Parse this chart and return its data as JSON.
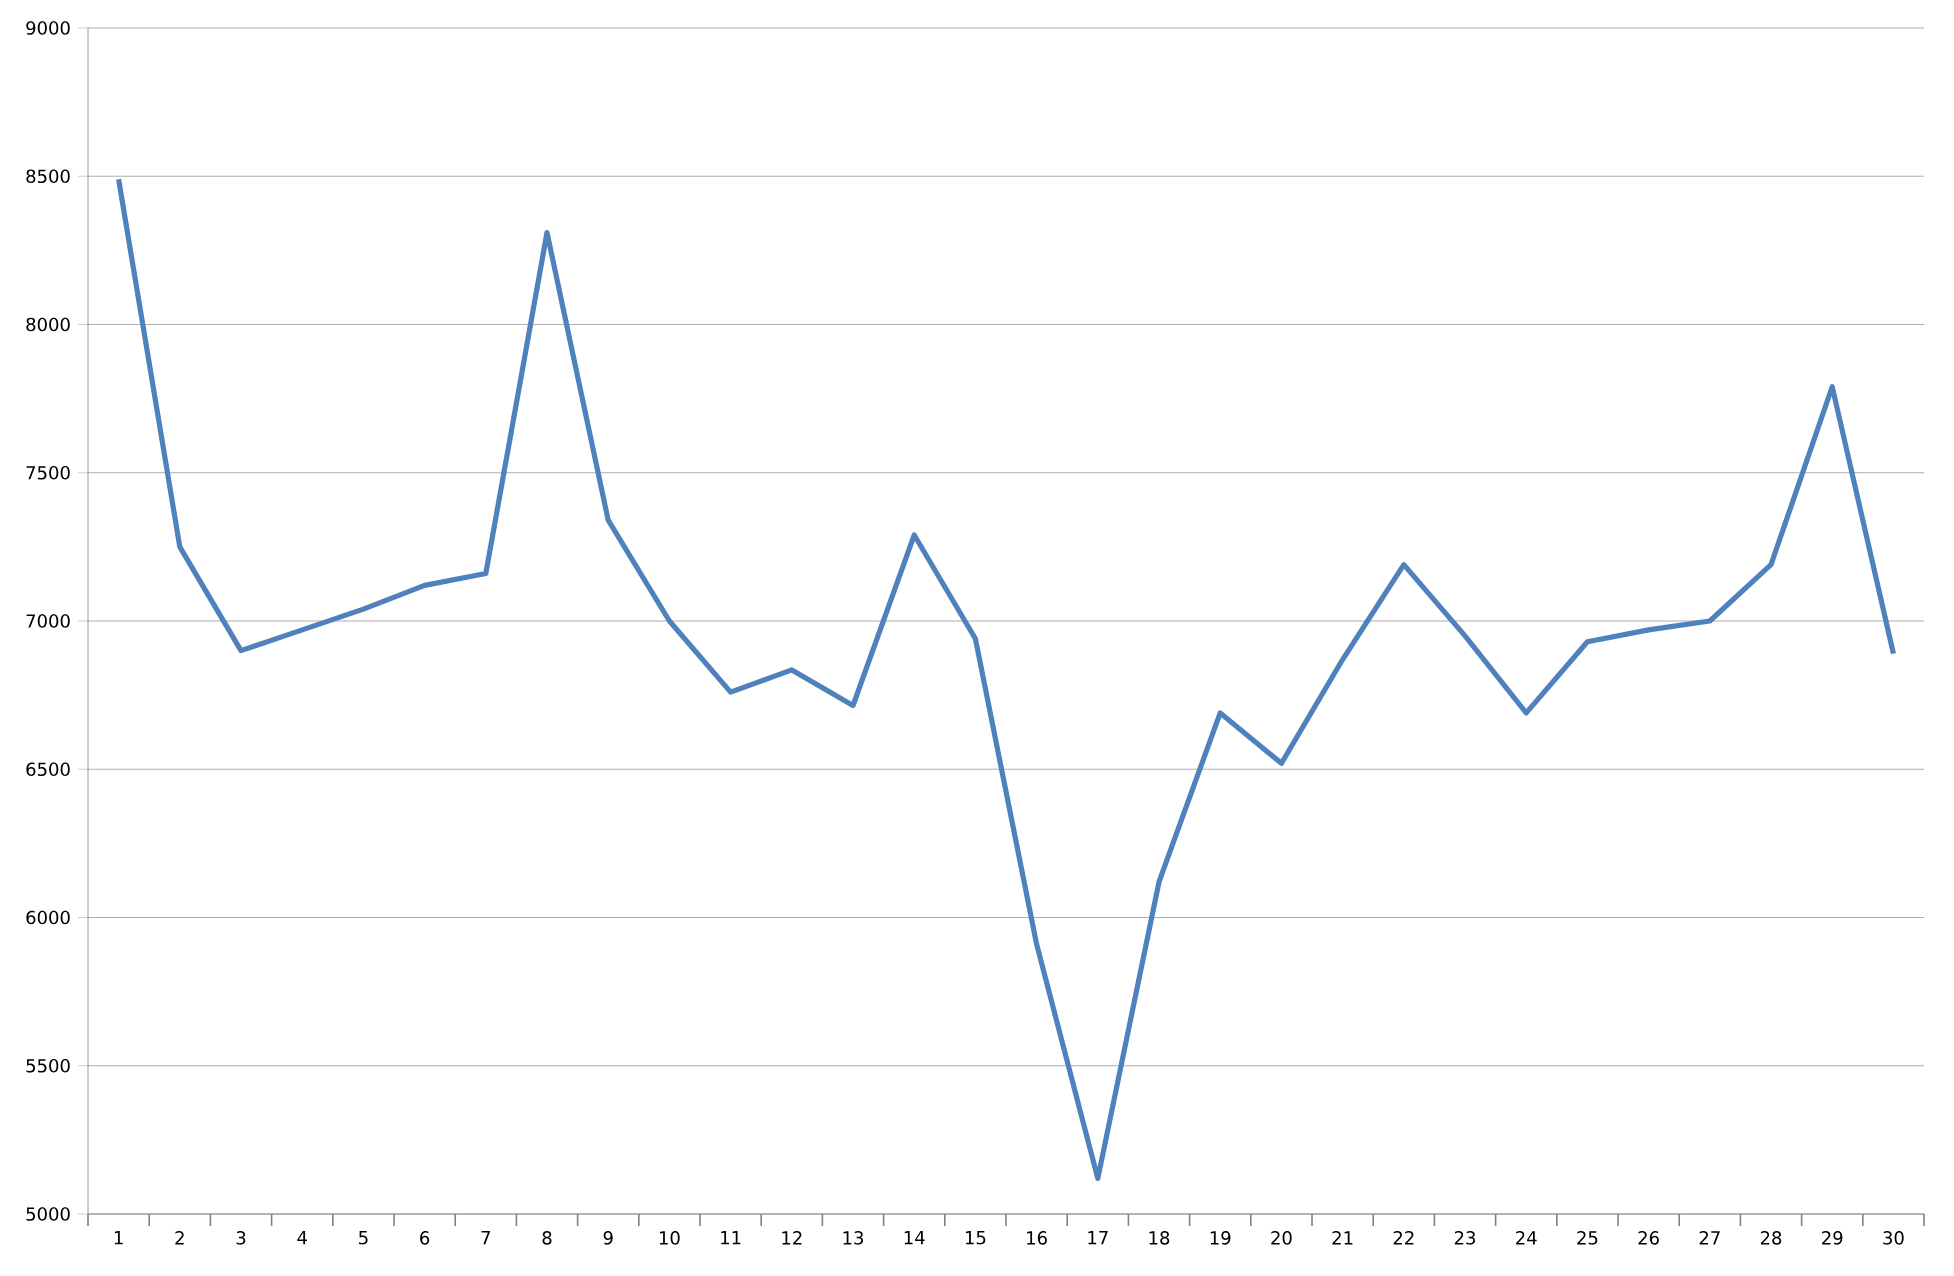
{
  "chart_data": {
    "type": "line",
    "categories": [
      "1",
      "2",
      "3",
      "4",
      "5",
      "6",
      "7",
      "8",
      "9",
      "10",
      "11",
      "12",
      "13",
      "14",
      "15",
      "16",
      "17",
      "18",
      "19",
      "20",
      "21",
      "22",
      "23",
      "24",
      "25",
      "26",
      "27",
      "28",
      "29",
      "30"
    ],
    "values": [
      8490,
      7250,
      6900,
      6970,
      7040,
      7120,
      7160,
      8310,
      7340,
      7000,
      6760,
      6835,
      6715,
      7290,
      6940,
      5910,
      5120,
      6120,
      6690,
      6520,
      6870,
      7190,
      6950,
      6690,
      6930,
      6970,
      7000,
      7190,
      7790,
      6890
    ],
    "color": "#4f81bd",
    "ylim": [
      5000,
      9000
    ],
    "yticks": [
      5000,
      5500,
      6000,
      6500,
      7000,
      7500,
      8000,
      8500,
      9000
    ],
    "grid": "y",
    "marker": "none",
    "line_style": "solid"
  }
}
